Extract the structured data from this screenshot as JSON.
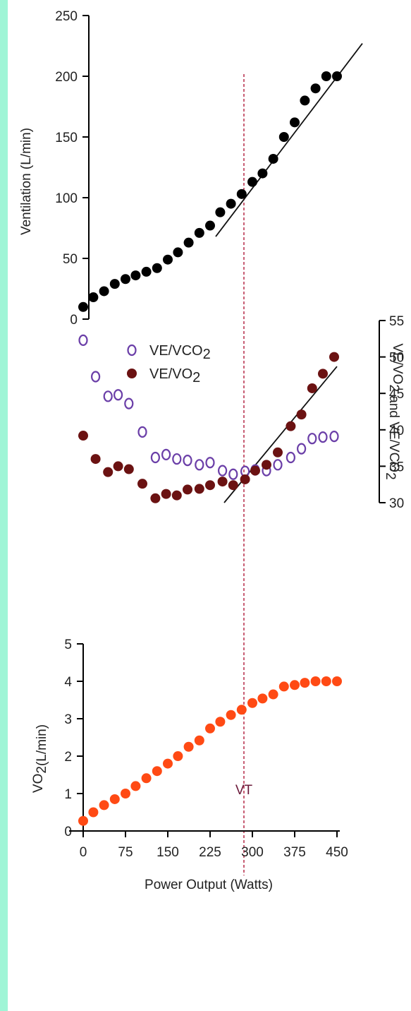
{
  "colors": {
    "page_border": "#9ff5d6",
    "axis": "#000000",
    "ventilation_points": "#000000",
    "ve_vco2_points": "#6b3fa8",
    "ve_vo2_points": "#6b1212",
    "vo2_points": "#ff4a14",
    "vt_line": "#b01a3a",
    "vt_label": "#6b1a3a"
  },
  "marker": {
    "label": "VT",
    "x": 285
  },
  "chart_data": [
    {
      "type": "scatter",
      "title": "",
      "xlabel": "",
      "ylabel": "Ventilation (L/min)",
      "ylim": [
        0,
        250
      ],
      "y_ticks": [
        "0",
        "50",
        "100",
        "150",
        "200",
        "250"
      ],
      "series": [
        {
          "x": [
            0,
            18,
            37,
            56,
            75,
            93,
            112,
            131,
            150,
            168,
            187,
            206,
            225,
            243,
            262,
            281,
            300,
            318,
            337,
            356,
            375,
            393,
            412,
            431,
            450
          ],
          "y": [
            10,
            18,
            23,
            29,
            33,
            36,
            39,
            42,
            49,
            55,
            63,
            71,
            77,
            88,
            95,
            103,
            113,
            120,
            132,
            150,
            162,
            180,
            190,
            200,
            200
          ]
        }
      ],
      "fit_line": {
        "x": [
          235,
          495
        ],
        "y": [
          68,
          227
        ]
      }
    },
    {
      "type": "scatter",
      "title": "",
      "xlabel": "",
      "ylabel": "VE/VO2 and VE/VCO2",
      "ylim": [
        30,
        55
      ],
      "y_ticks": [
        "30",
        "35",
        "40",
        "45",
        "50",
        "55"
      ],
      "legend": {
        "position": "top-left",
        "entries": [
          {
            "label": "VE/VCO2",
            "marker": "open"
          },
          {
            "label": "VE/VO2",
            "marker": "filled"
          }
        ]
      },
      "series": [
        {
          "name": "VE/VCO2",
          "marker": "open",
          "x": [
            0,
            22,
            44,
            62,
            81,
            105,
            128,
            147,
            166,
            185,
            206,
            225,
            247,
            266,
            287,
            305,
            325,
            345,
            368,
            387,
            406,
            425,
            445
          ],
          "y": [
            52.3,
            47.3,
            44.6,
            44.8,
            43.6,
            39.7,
            36.2,
            36.6,
            36,
            35.8,
            35.2,
            35.5,
            34.4,
            33.9,
            34.3,
            34.5,
            34.4,
            35.2,
            36.2,
            37.4,
            38.8,
            39.0,
            39.1
          ]
        },
        {
          "name": "VE/VO2",
          "marker": "filled",
          "x": [
            0,
            22,
            44,
            62,
            81,
            105,
            128,
            147,
            166,
            185,
            206,
            225,
            247,
            266,
            287,
            305,
            325,
            345,
            368,
            387,
            406,
            425,
            445
          ],
          "y": [
            39.2,
            36.0,
            34.2,
            35.0,
            34.6,
            32.6,
            30.6,
            31.2,
            31.0,
            31.8,
            31.9,
            32.4,
            32.9,
            32.4,
            33.2,
            34.4,
            35.2,
            36.9,
            40.5,
            42.1,
            45.7,
            47.7,
            50.0
          ]
        }
      ],
      "fit_line": {
        "x": [
          250,
          450
        ],
        "y": [
          30,
          48.7
        ]
      }
    },
    {
      "type": "scatter",
      "title": "",
      "xlabel": "Power Output (Watts)",
      "ylabel": "VO2(L/min)",
      "ylim": [
        0,
        5
      ],
      "y_ticks": [
        "0",
        "1",
        "2",
        "3",
        "4",
        "5"
      ],
      "xlim": [
        0,
        450
      ],
      "x_ticks": [
        "0",
        "75",
        "150",
        "225",
        "300",
        "375",
        "450"
      ],
      "series": [
        {
          "x": [
            0,
            18,
            37,
            56,
            75,
            93,
            112,
            131,
            150,
            168,
            187,
            206,
            225,
            243,
            262,
            281,
            300,
            318,
            337,
            356,
            375,
            393,
            412,
            431,
            450
          ],
          "y": [
            0.27,
            0.5,
            0.69,
            0.85,
            1.0,
            1.2,
            1.41,
            1.6,
            1.8,
            2.0,
            2.25,
            2.42,
            2.74,
            2.92,
            3.1,
            3.24,
            3.42,
            3.54,
            3.65,
            3.86,
            3.9,
            3.96,
            4.0,
            4.0,
            4.0
          ]
        }
      ]
    }
  ]
}
